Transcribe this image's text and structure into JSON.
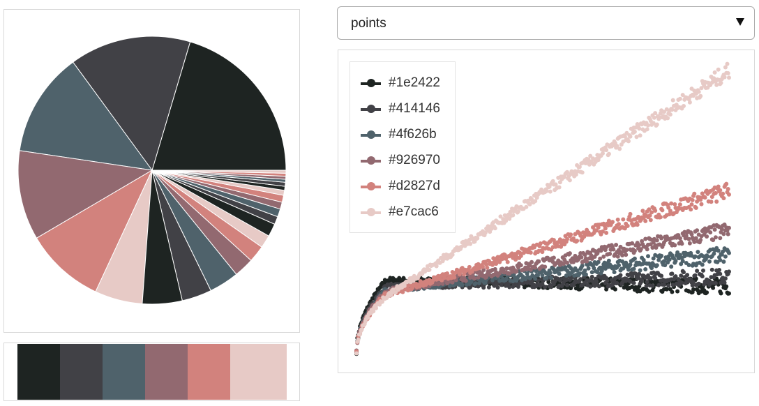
{
  "palette": [
    "#1e2422",
    "#414146",
    "#4f626b",
    "#926970",
    "#d2827d",
    "#e7cac6"
  ],
  "select": {
    "value": "points"
  },
  "chart_data": [
    {
      "type": "pie",
      "title": "",
      "slices": [
        {
          "value": 170,
          "color": "#1e2422"
        },
        {
          "value": 122,
          "color": "#414146"
        },
        {
          "value": 105,
          "color": "#4f626b"
        },
        {
          "value": 90,
          "color": "#926970"
        },
        {
          "value": 80,
          "color": "#d2827d"
        },
        {
          "value": 48,
          "color": "#e7cac6"
        },
        {
          "value": 40,
          "color": "#1e2422"
        },
        {
          "value": 30,
          "color": "#414146"
        },
        {
          "value": 30,
          "color": "#4f626b"
        },
        {
          "value": 20,
          "color": "#926970"
        },
        {
          "value": 17,
          "color": "#d2827d"
        },
        {
          "value": 13,
          "color": "#e7cac6"
        },
        {
          "value": 13,
          "color": "#1e2422"
        },
        {
          "value": 8,
          "color": "#414146"
        },
        {
          "value": 8,
          "color": "#4f626b"
        },
        {
          "value": 7,
          "color": "#926970"
        },
        {
          "value": 7,
          "color": "#d2827d"
        },
        {
          "value": 5,
          "color": "#e7cac6"
        },
        {
          "value": 4,
          "color": "#1e2422"
        },
        {
          "value": 4,
          "color": "#414146"
        },
        {
          "value": 3,
          "color": "#4f626b"
        },
        {
          "value": 3,
          "color": "#926970"
        },
        {
          "value": 3,
          "color": "#d2827d"
        },
        {
          "value": 3,
          "color": "#e7cac6"
        }
      ]
    },
    {
      "type": "scatter",
      "title": "",
      "xlabel": "",
      "ylabel": "",
      "grid": false,
      "legend_position": "top-left",
      "xlim": [
        0,
        100
      ],
      "ylim": [
        0,
        100
      ],
      "series": [
        {
          "name": "#1e2422",
          "color": "#1e2422",
          "start": 50,
          "end": 46,
          "noise": 4
        },
        {
          "name": "#414146",
          "color": "#414146",
          "start": 46,
          "end": 52,
          "noise": 4
        },
        {
          "name": "#4f626b",
          "color": "#4f626b",
          "start": 44,
          "end": 66,
          "noise": 4
        },
        {
          "name": "#926970",
          "color": "#926970",
          "start": 43,
          "end": 81,
          "noise": 4
        },
        {
          "name": "#d2827d",
          "color": "#d2827d",
          "start": 41,
          "end": 106,
          "noise": 4
        },
        {
          "name": "#e7cac6",
          "color": "#e7cac6",
          "start": 40,
          "end": 181,
          "noise": 4
        }
      ]
    }
  ]
}
